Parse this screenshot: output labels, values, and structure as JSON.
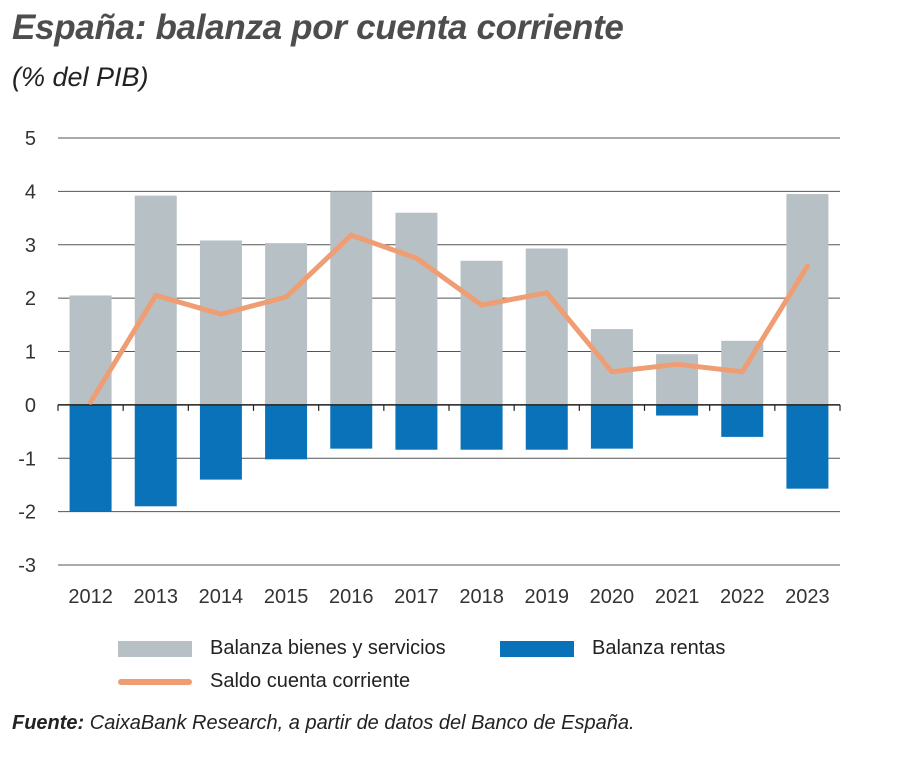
{
  "title": "España: balanza por cuenta corriente",
  "subtitle": "(% del PIB)",
  "source": {
    "label": "Fuente:",
    "text": " CaixaBank Research, a partir de datos del Banco de España."
  },
  "colors": {
    "goods": "#b7c0c4",
    "income": "#0a72b9",
    "balance": "#ef9d73",
    "grid": "#555555"
  },
  "chart_data": {
    "type": "bar",
    "categories": [
      "2012",
      "2013",
      "2014",
      "2015",
      "2016",
      "2017",
      "2018",
      "2019",
      "2020",
      "2021",
      "2022",
      "2023"
    ],
    "ylim": [
      -3,
      5
    ],
    "yticks": [
      5,
      4,
      3,
      2,
      1,
      0,
      -1,
      -2,
      -3
    ],
    "ytick_labels": [
      "5",
      "4",
      "3",
      "2",
      "1",
      "0",
      "-1",
      "-2",
      "-3"
    ],
    "grid": true,
    "legend_position": "bottom",
    "series": [
      {
        "name": "Balanza bienes y servicios",
        "kind": "bar",
        "values": [
          2.05,
          3.92,
          3.08,
          3.03,
          4.0,
          3.6,
          2.7,
          2.93,
          1.42,
          0.95,
          1.2,
          3.95
        ]
      },
      {
        "name": "Balanza rentas",
        "kind": "bar",
        "values": [
          -2.0,
          -1.9,
          -1.4,
          -1.02,
          -0.82,
          -0.84,
          -0.84,
          -0.84,
          -0.82,
          -0.2,
          -0.6,
          -1.57
        ]
      },
      {
        "name": "Saldo cuenta corriente",
        "kind": "line",
        "values": [
          0.05,
          2.05,
          1.7,
          2.02,
          3.18,
          2.75,
          1.87,
          2.1,
          0.62,
          0.76,
          0.62,
          2.6
        ]
      }
    ]
  }
}
